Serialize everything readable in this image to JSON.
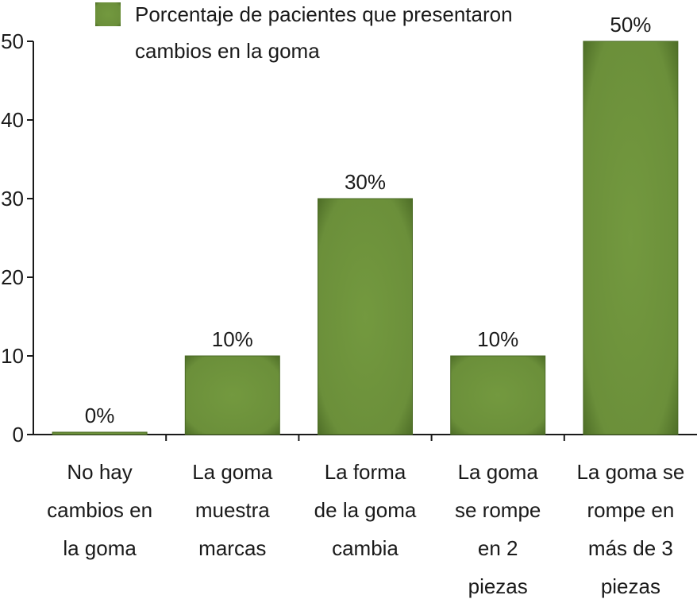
{
  "chart_data": {
    "type": "bar",
    "categories": [
      [
        "No hay",
        "cambios en",
        "la goma"
      ],
      [
        "La goma",
        "muestra",
        "marcas"
      ],
      [
        "La forma",
        "de la goma",
        "cambia"
      ],
      [
        "La goma",
        "se rompe",
        "en 2",
        "piezas"
      ],
      [
        "La goma se",
        "rompe en",
        "más de 3",
        "piezas"
      ]
    ],
    "values": [
      0,
      10,
      30,
      10,
      50
    ],
    "data_labels": [
      "0%",
      "10%",
      "30%",
      "10%",
      "50%"
    ],
    "ylim": [
      0,
      50
    ],
    "yticks": [
      0,
      10,
      20,
      30,
      40,
      50
    ],
    "ytick_labels": [
      "0",
      "10",
      "20",
      "30",
      "40",
      "50"
    ],
    "legend": {
      "placement": "top-center",
      "lines": [
        "Porcentaje de pacientes que presentaron",
        "cambios en la goma"
      ]
    },
    "bar_color": "#6b8f3a",
    "bar_edge_color": "#4a6a24",
    "grid": false
  }
}
